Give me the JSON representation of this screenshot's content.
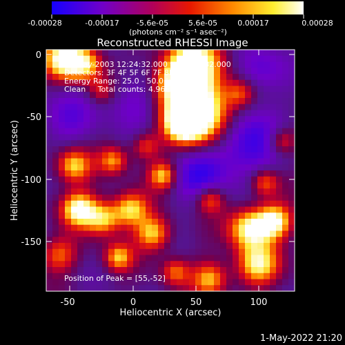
{
  "colorbar": {
    "ticks": [
      "-0.00028",
      "-0.00017",
      "-5.6e-05",
      "5.6e-05",
      "0.00017",
      "0.00028"
    ],
    "units": "(photons cm⁻² s⁻¹ asec⁻²)",
    "colors": [
      "#1500ff",
      "#7a00c0",
      "#b80050",
      "#e81000",
      "#ff9a00",
      "#ffff40",
      "#ffffff"
    ]
  },
  "plot": {
    "title": "Reconstructed RHESSI Image",
    "xlabel": "Heliocentric X (arcsec)",
    "ylabel": "Heliocentric Y (arcsec)",
    "xticks": [
      "-50",
      "0",
      "50",
      "100"
    ],
    "yticks": [
      "0",
      "-50",
      "-100",
      "-150"
    ],
    "xrange": [
      -68,
      126
    ],
    "yrange": [
      -192,
      2
    ],
    "xtick_values": [
      -50,
      0,
      50,
      100
    ],
    "ytick_values": [
      0,
      -50,
      -100,
      -150
    ]
  },
  "info": {
    "line1": "26-May-2003 12:24:32.000 to 12:30:32.000",
    "line2": "Detectors: 3F 4F 5F 6F 7F 8F, Att 0",
    "line3": "Energy Range: 25.0 - 50.0 keV",
    "line4": "Clean     Total counts: 4.96E+03"
  },
  "peak_label": "Position of Peak = [55,-52]",
  "peak": [
    55,
    -52
  ],
  "footer_date": "1-May-2022 21:20"
}
